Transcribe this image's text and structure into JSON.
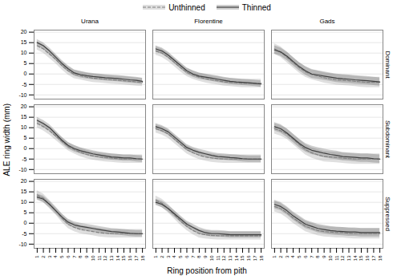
{
  "chart_data": {
    "type": "line",
    "xlabel": "Ring position from pith",
    "ylabel": "ALE ring width (mm)",
    "columns": [
      "Urana",
      "Florentine",
      "Gads"
    ],
    "rows": [
      "Dominant",
      "Subdominant",
      "Suppressed"
    ],
    "x": [
      1,
      2,
      3,
      4,
      5,
      6,
      7,
      8,
      9,
      10,
      11,
      12,
      13,
      14,
      15,
      16,
      17,
      18
    ],
    "xlim": [
      0.5,
      18.5
    ],
    "xticks": [
      1,
      2,
      3,
      4,
      5,
      6,
      7,
      8,
      9,
      10,
      11,
      12,
      13,
      14,
      15,
      16,
      17,
      18
    ],
    "ylim": [
      -12,
      21
    ],
    "yticks": [
      -10,
      -5,
      0,
      5,
      10,
      15,
      20
    ],
    "grid": true,
    "legend": "top",
    "series": [
      {
        "name": "Unthinned",
        "color": "#808080",
        "line_style": "dashed",
        "values": {
          "Dominant": {
            "Urana": [
              13.5,
              12.0,
              9.5,
              7.0,
              4.0,
              1.5,
              -0.2,
              -0.8,
              -1.5,
              -2.0,
              -2.2,
              -2.5,
              -2.8,
              -3.0,
              -3.2,
              -3.5,
              -3.8,
              -4.0
            ],
            "Florentine": [
              11.0,
              10.0,
              8.0,
              5.5,
              3.0,
              0.8,
              -0.5,
              -1.5,
              -2.2,
              -2.8,
              -3.2,
              -3.8,
              -4.0,
              -4.2,
              -4.5,
              -4.5,
              -4.5,
              -4.5
            ],
            "Gads": [
              12.0,
              10.5,
              8.0,
              5.5,
              3.0,
              1.0,
              -0.2,
              -1.0,
              -1.8,
              -2.3,
              -2.8,
              -3.0,
              -3.2,
              -3.5,
              -3.8,
              -4.0,
              -4.0,
              -4.0
            ]
          },
          "Subdominant": {
            "Urana": [
              12.0,
              10.5,
              8.5,
              6.0,
              3.5,
              1.0,
              -0.5,
              -1.8,
              -2.8,
              -3.5,
              -4.0,
              -4.3,
              -4.5,
              -4.8,
              -5.0,
              -5.0,
              -5.0,
              -5.0
            ],
            "Florentine": [
              9.5,
              8.5,
              7.0,
              4.5,
              2.0,
              -0.5,
              -2.0,
              -3.2,
              -4.0,
              -4.5,
              -4.8,
              -5.0,
              -5.0,
              -5.0,
              -5.0,
              -5.0,
              -5.0,
              -5.0
            ],
            "Gads": [
              9.5,
              8.5,
              7.0,
              4.5,
              2.0,
              -0.5,
              -2.0,
              -3.0,
              -3.8,
              -4.0,
              -4.2,
              -4.5,
              -4.8,
              -5.0,
              -5.0,
              -5.0,
              -5.0,
              -5.0
            ]
          },
          "Suppressed": {
            "Urana": [
              13.5,
              12.0,
              9.0,
              6.0,
              2.5,
              -0.5,
              -2.0,
              -3.0,
              -3.5,
              -4.0,
              -4.5,
              -4.8,
              -5.0,
              -5.0,
              -5.0,
              -5.0,
              -5.0,
              -5.0
            ],
            "Florentine": [
              11.0,
              9.5,
              7.0,
              4.0,
              1.0,
              -1.5,
              -3.5,
              -5.0,
              -5.5,
              -5.8,
              -6.0,
              -6.0,
              -6.0,
              -6.0,
              -6.0,
              -6.0,
              -6.0,
              -6.0
            ],
            "Gads": [
              8.0,
              7.0,
              5.0,
              2.5,
              0.5,
              -1.5,
              -2.5,
              -3.5,
              -4.0,
              -4.2,
              -4.5,
              -4.5,
              -4.8,
              -5.0,
              -5.0,
              -5.0,
              -5.0,
              -5.0
            ]
          }
        },
        "ci": {
          "Dominant": {
            "Urana": [
              2.0,
              2.0,
              2.0,
              2.0,
              2.0,
              2.0,
              2.0,
              2.0,
              2.0,
              2.0,
              2.0,
              2.0,
              2.0,
              2.0,
              2.0,
              2.0,
              2.0,
              2.0
            ],
            "Florentine": [
              2.0,
              2.0,
              2.0,
              2.0,
              2.0,
              2.0,
              2.0,
              2.0,
              2.0,
              2.0,
              2.0,
              2.0,
              2.0,
              2.0,
              2.0,
              2.0,
              2.0,
              2.0
            ],
            "Gads": [
              2.5,
              2.5,
              2.5,
              2.5,
              2.5,
              2.5,
              2.5,
              2.5,
              2.5,
              2.5,
              2.5,
              2.5,
              2.5,
              2.5,
              2.5,
              2.5,
              2.5,
              2.5
            ]
          },
          "Subdominant": {
            "Urana": [
              2.0,
              2.0,
              2.0,
              2.0,
              2.0,
              2.0,
              2.0,
              2.0,
              2.0,
              2.0,
              2.0,
              2.0,
              2.0,
              2.0,
              2.0,
              2.0,
              2.0,
              2.0
            ],
            "Florentine": [
              2.0,
              2.0,
              2.0,
              2.0,
              2.0,
              2.0,
              2.0,
              2.0,
              2.0,
              2.0,
              2.0,
              2.0,
              2.0,
              2.0,
              2.0,
              2.0,
              2.0,
              2.0
            ],
            "Gads": [
              2.5,
              2.5,
              2.5,
              2.5,
              2.5,
              2.5,
              2.5,
              2.5,
              2.5,
              2.5,
              2.5,
              2.5,
              2.5,
              2.5,
              2.5,
              2.5,
              2.5,
              2.5
            ]
          },
          "Suppressed": {
            "Urana": [
              2.0,
              2.0,
              2.0,
              2.0,
              2.0,
              2.0,
              2.0,
              2.0,
              2.0,
              2.0,
              2.0,
              2.0,
              2.0,
              2.0,
              2.0,
              2.0,
              2.0,
              2.0
            ],
            "Florentine": [
              2.0,
              2.0,
              2.0,
              2.0,
              2.0,
              2.0,
              2.0,
              2.0,
              2.0,
              2.0,
              2.0,
              2.0,
              2.0,
              2.0,
              2.0,
              2.0,
              2.0,
              2.0
            ],
            "Gads": [
              2.5,
              2.5,
              2.5,
              2.5,
              2.5,
              2.5,
              2.5,
              2.5,
              2.5,
              2.5,
              2.5,
              2.5,
              2.5,
              2.5,
              2.5,
              2.5,
              2.5,
              2.5
            ]
          }
        }
      },
      {
        "name": "Thinned",
        "color": "#404040",
        "line_style": "solid",
        "values": {
          "Dominant": {
            "Urana": [
              15.0,
              13.5,
              11.0,
              8.0,
              5.0,
              2.5,
              0.5,
              -0.3,
              -0.8,
              -1.2,
              -1.5,
              -1.8,
              -2.0,
              -2.2,
              -2.5,
              -2.8,
              -3.0,
              -3.5
            ],
            "Florentine": [
              12.0,
              11.0,
              9.0,
              6.5,
              4.0,
              1.5,
              0.0,
              -1.0,
              -1.5,
              -2.0,
              -2.5,
              -3.0,
              -3.5,
              -3.8,
              -4.0,
              -4.2,
              -4.5,
              -4.8
            ],
            "Gads": [
              11.5,
              10.5,
              8.5,
              6.0,
              3.5,
              1.5,
              0.0,
              -0.5,
              -1.0,
              -1.5,
              -2.0,
              -2.3,
              -2.5,
              -2.8,
              -3.0,
              -3.2,
              -3.5,
              -3.8
            ]
          },
          "Subdominant": {
            "Urana": [
              13.5,
              12.0,
              10.0,
              7.0,
              4.0,
              1.5,
              0.0,
              -1.0,
              -1.8,
              -2.5,
              -3.0,
              -3.5,
              -4.0,
              -4.2,
              -4.5,
              -4.5,
              -4.8,
              -5.0
            ],
            "Florentine": [
              10.5,
              9.5,
              8.0,
              5.5,
              3.0,
              0.5,
              -0.8,
              -1.8,
              -2.5,
              -3.2,
              -3.8,
              -4.0,
              -4.3,
              -4.5,
              -4.8,
              -5.0,
              -5.0,
              -5.0
            ],
            "Gads": [
              10.5,
              9.5,
              7.5,
              5.0,
              2.5,
              0.5,
              -0.8,
              -1.5,
              -2.2,
              -2.8,
              -3.2,
              -3.8,
              -4.0,
              -4.2,
              -4.5,
              -4.5,
              -4.8,
              -5.0
            ]
          },
          "Suppressed": {
            "Urana": [
              12.5,
              11.5,
              9.0,
              6.0,
              3.0,
              0.5,
              -0.8,
              -1.5,
              -2.0,
              -2.5,
              -3.0,
              -3.5,
              -4.0,
              -4.2,
              -4.5,
              -4.8,
              -5.0,
              -5.0
            ],
            "Florentine": [
              10.0,
              9.0,
              7.0,
              4.5,
              2.0,
              -0.5,
              -2.0,
              -3.5,
              -4.5,
              -5.0,
              -5.0,
              -5.2,
              -5.5,
              -5.5,
              -5.5,
              -5.5,
              -5.5,
              -5.5
            ],
            "Gads": [
              9.0,
              8.0,
              6.0,
              3.5,
              1.5,
              -0.5,
              -1.5,
              -2.5,
              -3.0,
              -3.5,
              -3.8,
              -4.0,
              -4.2,
              -4.2,
              -4.5,
              -4.5,
              -4.5,
              -4.5
            ]
          }
        },
        "ci": {
          "Dominant": {
            "Urana": [
              1.5,
              1.5,
              1.5,
              1.5,
              1.5,
              1.5,
              1.5,
              1.5,
              1.5,
              1.5,
              1.5,
              1.5,
              1.5,
              1.5,
              1.5,
              1.5,
              1.5,
              1.5
            ],
            "Florentine": [
              1.5,
              1.5,
              1.5,
              1.5,
              1.5,
              1.5,
              1.5,
              1.5,
              1.5,
              1.5,
              1.5,
              1.5,
              1.5,
              1.5,
              1.5,
              1.5,
              1.5,
              1.5
            ],
            "Gads": [
              2.0,
              2.0,
              2.0,
              2.0,
              2.0,
              2.0,
              2.0,
              2.0,
              2.0,
              2.0,
              2.0,
              2.0,
              2.0,
              2.0,
              2.0,
              2.0,
              2.0,
              2.0
            ]
          },
          "Subdominant": {
            "Urana": [
              1.5,
              1.5,
              1.5,
              1.5,
              1.5,
              1.5,
              1.5,
              1.5,
              1.5,
              1.5,
              1.5,
              1.5,
              1.5,
              1.5,
              1.5,
              1.5,
              1.5,
              1.5
            ],
            "Florentine": [
              1.5,
              1.5,
              1.5,
              1.5,
              1.5,
              1.5,
              1.5,
              1.5,
              1.5,
              1.5,
              1.5,
              1.5,
              1.5,
              1.5,
              1.5,
              1.5,
              1.5,
              1.5
            ],
            "Gads": [
              2.0,
              2.0,
              2.0,
              2.0,
              2.0,
              2.0,
              2.0,
              2.0,
              2.0,
              2.0,
              2.0,
              2.0,
              2.0,
              2.0,
              2.0,
              2.0,
              2.0,
              2.0
            ]
          },
          "Suppressed": {
            "Urana": [
              1.5,
              1.5,
              1.5,
              1.5,
              1.5,
              1.5,
              1.5,
              1.5,
              1.5,
              1.5,
              1.5,
              1.5,
              1.5,
              1.5,
              1.5,
              1.5,
              1.5,
              1.5
            ],
            "Florentine": [
              1.5,
              1.5,
              1.5,
              1.5,
              1.5,
              1.5,
              1.5,
              1.5,
              1.5,
              1.5,
              1.5,
              1.5,
              1.5,
              1.5,
              1.5,
              1.5,
              1.5,
              1.5
            ],
            "Gads": [
              2.0,
              2.0,
              2.0,
              2.0,
              2.0,
              2.0,
              2.0,
              2.0,
              2.0,
              2.0,
              2.0,
              2.0,
              2.0,
              2.0,
              2.0,
              2.0,
              2.0,
              2.0
            ]
          }
        }
      }
    ]
  }
}
